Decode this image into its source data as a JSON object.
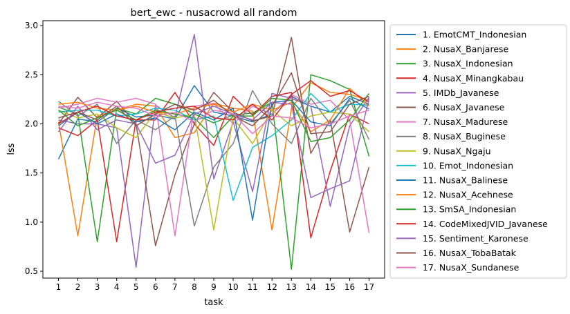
{
  "chart_data": {
    "type": "line",
    "title": "bert_ewc - nusacrowd all random",
    "xlabel": "task",
    "ylabel": "lss",
    "x": [
      1,
      2,
      3,
      4,
      5,
      6,
      7,
      8,
      9,
      10,
      11,
      12,
      13,
      14,
      15,
      16,
      17
    ],
    "xticks": [
      "1",
      "2",
      "3",
      "4",
      "5",
      "6",
      "7",
      "8",
      "9",
      "10",
      "11",
      "12",
      "13",
      "14",
      "15",
      "16",
      "17"
    ],
    "yticks": [
      "0.5",
      "1.0",
      "1.5",
      "2.0",
      "2.5",
      "3.0"
    ],
    "ylim": [
      0.43,
      3.05
    ],
    "xlim": [
      0.2,
      17.8
    ],
    "grid": false,
    "legend_position": "outside-right",
    "series": [
      {
        "name": "1. EmotCMT_Indonesian",
        "color": "#1f77b4",
        "values": [
          1.64,
          2.05,
          2.02,
          2.16,
          2.07,
          2.09,
          2.05,
          2.39,
          2.12,
          2.08,
          2.02,
          2.1,
          2.28,
          2.18,
          2.12,
          2.28,
          2.2
        ]
      },
      {
        "name": "2. NusaX_Banjarese",
        "color": "#ff7f0e",
        "values": [
          2.02,
          0.86,
          2.08,
          2.14,
          2.2,
          2.18,
          1.86,
          1.91,
          2.21,
          2.16,
          2.13,
          0.92,
          2.16,
          2.42,
          2.32,
          2.3,
          2.24
        ]
      },
      {
        "name": "3. NusaX_Indonesian",
        "color": "#2ca02c",
        "values": [
          2.17,
          2.1,
          0.8,
          2.16,
          2.1,
          2.26,
          2.2,
          2.1,
          2.01,
          2.09,
          2.11,
          2.22,
          0.52,
          2.5,
          2.44,
          2.35,
          1.67
        ]
      },
      {
        "name": "4. NusaX_Minangkabau",
        "color": "#d62728",
        "values": [
          1.96,
          1.88,
          2.04,
          0.8,
          2.04,
          2.04,
          2.32,
          2.0,
          1.78,
          2.28,
          2.09,
          2.28,
          2.32,
          0.84,
          1.52,
          2.1,
          2.0
        ]
      },
      {
        "name": "5. IMDb_Javanese",
        "color": "#9467bd",
        "values": [
          2.04,
          2.0,
          2.0,
          1.96,
          0.54,
          2.19,
          2.06,
          2.91,
          1.44,
          2.02,
          1.31,
          2.31,
          2.26,
          2.18,
          1.16,
          1.98,
          2.27
        ]
      },
      {
        "name": "6. NusaX_Javanese",
        "color": "#8c564b",
        "values": [
          2.0,
          2.27,
          2.06,
          2.23,
          2.0,
          0.76,
          1.48,
          2.0,
          2.32,
          2.12,
          2.03,
          2.08,
          2.88,
          1.7,
          2.04,
          0.9,
          1.56
        ]
      },
      {
        "name": "7. NusaX_Madurese",
        "color": "#e377c2",
        "values": [
          2.16,
          2.2,
          2.26,
          2.22,
          2.26,
          2.2,
          0.86,
          2.18,
          2.21,
          2.0,
          2.18,
          2.1,
          2.3,
          2.2,
          2.24,
          2.04,
          0.89
        ]
      },
      {
        "name": "8. NusaX_Buginese",
        "color": "#7f7f7f",
        "values": [
          2.23,
          2.08,
          2.2,
          1.8,
          2.04,
          1.94,
          2.08,
          0.96,
          1.56,
          1.8,
          2.34,
          2.0,
          1.8,
          2.26,
          2.0,
          2.24,
          1.84
        ]
      },
      {
        "name": "9. NusaX_Ngaju",
        "color": "#bcbd22",
        "values": [
          2.14,
          2.06,
          2.1,
          1.96,
          1.86,
          2.12,
          2.06,
          2.1,
          0.92,
          2.06,
          1.8,
          2.14,
          1.98,
          2.08,
          2.12,
          2.1,
          1.92
        ]
      },
      {
        "name": "10. Emot_Indonesian",
        "color": "#17becf",
        "values": [
          2.12,
          2.14,
          2.14,
          2.08,
          2.1,
          2.16,
          2.14,
          2.04,
          2.08,
          1.22,
          1.76,
          1.88,
          2.04,
          2.31,
          2.12,
          2.2,
          2.19
        ]
      },
      {
        "name": "11. NusaX_Balinese",
        "color": "#1f77b4",
        "values": [
          1.98,
          2.12,
          2.0,
          2.1,
          2.02,
          2.06,
          1.94,
          2.12,
          2.04,
          2.16,
          1.02,
          2.22,
          2.24,
          2.02,
          1.98,
          2.26,
          2.15
        ]
      },
      {
        "name": "12. NusaX_Acehnese",
        "color": "#ff7f0e",
        "values": [
          2.2,
          2.22,
          2.16,
          2.14,
          2.18,
          2.12,
          2.1,
          2.16,
          2.2,
          2.12,
          2.2,
          2.14,
          2.22,
          1.92,
          2.04,
          2.36,
          2.18
        ]
      },
      {
        "name": "13. SmSA_Indonesian",
        "color": "#2ca02c",
        "values": [
          2.14,
          1.98,
          2.06,
          2.14,
          2.04,
          2.14,
          2.1,
          2.06,
          1.86,
          2.08,
          2.08,
          2.26,
          2.24,
          1.82,
          1.86,
          2.04,
          2.31
        ]
      },
      {
        "name": "14. CodeMixedJVID_Javanese",
        "color": "#d62728",
        "values": [
          2.0,
          2.12,
          2.18,
          2.08,
          2.04,
          2.12,
          2.16,
          2.18,
          2.06,
          2.04,
          2.2,
          2.04,
          2.3,
          2.44,
          2.28,
          2.34,
          2.22
        ]
      },
      {
        "name": "15. Sentiment_Karonese",
        "color": "#9467bd",
        "values": [
          1.92,
          2.18,
          1.94,
          2.04,
          2.0,
          1.6,
          1.68,
          2.1,
          2.18,
          2.1,
          2.04,
          2.22,
          2.2,
          1.25,
          1.34,
          1.42,
          2.26
        ]
      },
      {
        "name": "16. NusaX_TobaBatak",
        "color": "#8c564b",
        "values": [
          2.06,
          2.12,
          2.04,
          2.18,
          1.98,
          2.1,
          2.2,
          2.14,
          2.24,
          2.08,
          1.98,
          2.18,
          2.52,
          1.9,
          1.92,
          2.2,
          2.28
        ]
      },
      {
        "name": "17. NusaX_Sundanese",
        "color": "#e377c2",
        "values": [
          2.18,
          2.16,
          2.22,
          2.18,
          2.16,
          2.08,
          2.12,
          2.02,
          2.14,
          2.1,
          1.9,
          2.08,
          2.06,
          1.96,
          2.0,
          2.08,
          2.14
        ]
      }
    ]
  }
}
